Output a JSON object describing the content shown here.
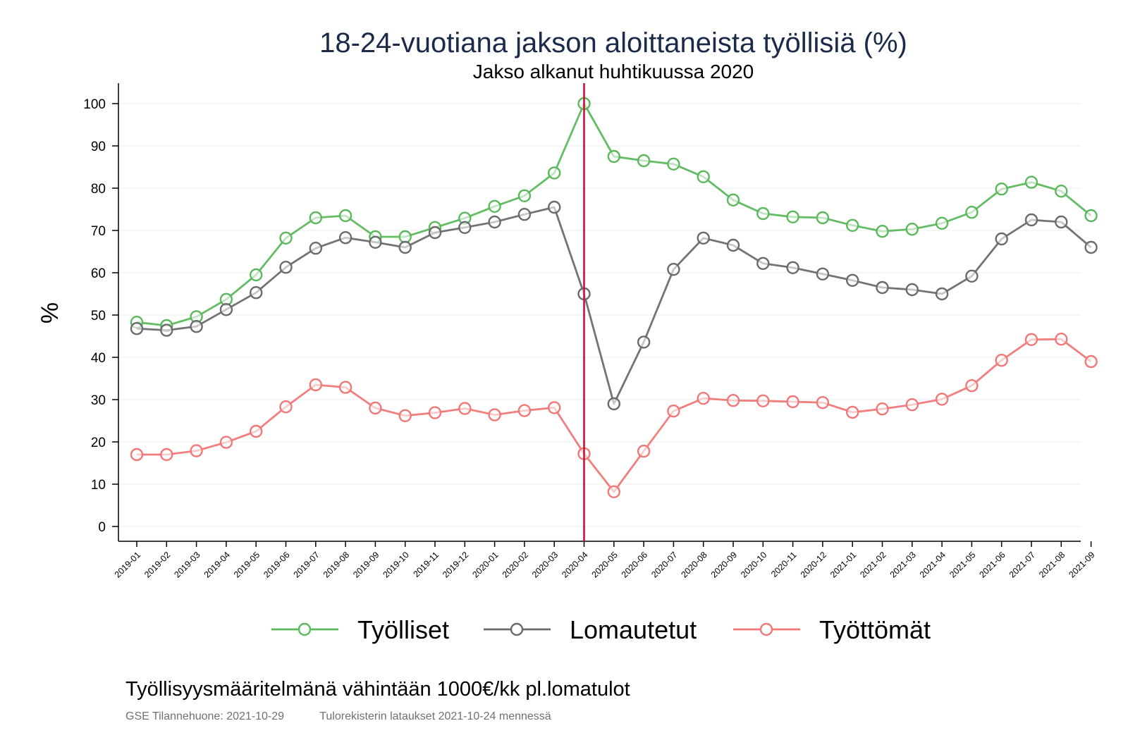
{
  "chart_data": {
    "type": "line",
    "title": "18-24-vuotiana jakson aloittaneista työllisiä (%)",
    "subtitle": "Jakso alkanut huhtikuussa 2020",
    "ylabel": "%",
    "xlabel": "",
    "ylim": [
      0,
      100
    ],
    "yticks": [
      0,
      10,
      20,
      30,
      40,
      50,
      60,
      70,
      80,
      90,
      100
    ],
    "grid": true,
    "legend_position": "bottom",
    "reference_line": {
      "x": "2020-04",
      "color": "#c0143c"
    },
    "x": [
      "2019-01",
      "2019-02",
      "2019-03",
      "2019-04",
      "2019-05",
      "2019-06",
      "2019-07",
      "2019-08",
      "2019-09",
      "2019-10",
      "2019-11",
      "2019-12",
      "2020-01",
      "2020-02",
      "2020-03",
      "2020-04",
      "2020-05",
      "2020-06",
      "2020-07",
      "2020-08",
      "2020-09",
      "2020-10",
      "2020-11",
      "2020-12",
      "2021-01",
      "2021-02",
      "2021-03",
      "2021-04",
      "2021-05",
      "2021-06",
      "2021-07",
      "2021-08",
      "2021-09"
    ],
    "series": [
      {
        "name": "Työlliset",
        "color": "#5cb85c",
        "values": [
          48.3,
          47.5,
          49.6,
          53.7,
          59.5,
          68.2,
          73.0,
          73.5,
          68.5,
          68.5,
          70.7,
          72.9,
          75.7,
          78.2,
          83.6,
          100.0,
          87.5,
          86.5,
          85.7,
          82.7,
          77.2,
          74.0,
          73.2,
          73.0,
          71.2,
          69.8,
          70.3,
          71.7,
          74.3,
          79.8,
          81.4,
          79.3,
          73.5
        ]
      },
      {
        "name": "Lomautetut",
        "color": "#6b6b6b",
        "values": [
          46.8,
          46.4,
          47.3,
          51.3,
          55.3,
          61.3,
          65.8,
          68.3,
          67.2,
          66.0,
          69.5,
          70.7,
          72.0,
          73.8,
          75.5,
          55.0,
          29.0,
          43.6,
          60.8,
          68.2,
          66.5,
          62.2,
          61.2,
          59.7,
          58.2,
          56.5,
          56.0,
          55.0,
          59.2,
          68.0,
          72.5,
          72.0,
          66.0
        ]
      },
      {
        "name": "Työttömät",
        "color": "#f07878",
        "values": [
          17.0,
          17.0,
          17.9,
          19.9,
          22.5,
          28.3,
          33.5,
          32.9,
          28.0,
          26.2,
          26.9,
          27.9,
          26.4,
          27.4,
          28.1,
          17.2,
          8.2,
          17.8,
          27.3,
          30.3,
          29.8,
          29.7,
          29.5,
          29.3,
          27.0,
          27.8,
          28.8,
          30.1,
          33.3,
          39.3,
          44.2,
          44.3,
          39.0
        ]
      }
    ]
  },
  "footer": {
    "note": "Työllisyysmääritelmänä vähintään 1000€/kk pl.lomatulot",
    "source_left": "GSE Tilannehuone: 2021-10-29",
    "source_right": "Tulorekisterin lataukset 2021-10-24 mennessä"
  }
}
